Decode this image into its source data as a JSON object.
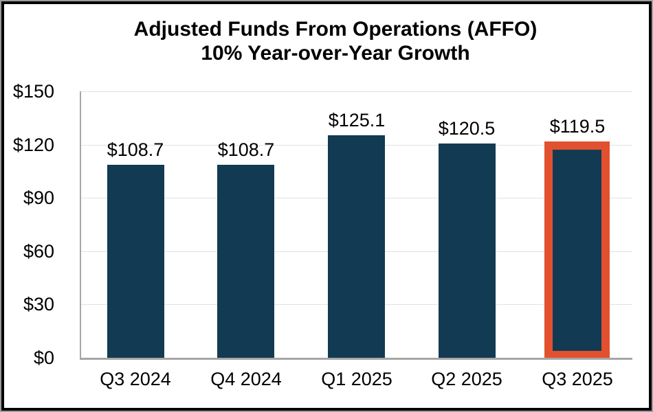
{
  "chart": {
    "title_line1": "Adjusted Funds From Operations (AFFO)",
    "title_line2": "10% Year-over-Year Growth"
  },
  "chart_data": {
    "type": "bar",
    "title": "Adjusted Funds From Operations (AFFO)",
    "subtitle": "10% Year-over-Year Growth",
    "categories": [
      "Q3 2024",
      "Q4 2024",
      "Q1 2025",
      "Q2 2025",
      "Q3 2025"
    ],
    "values": [
      108.7,
      108.7,
      125.1,
      120.5,
      119.5
    ],
    "data_labels": [
      "$108.7",
      "$108.7",
      "$125.1",
      "$120.5",
      "$119.5"
    ],
    "xlabel": "",
    "ylabel": "",
    "ylim": [
      0,
      150
    ],
    "y_ticks": [
      0,
      30,
      60,
      90,
      120,
      150
    ],
    "y_tick_labels": [
      "$0",
      "$30",
      "$60",
      "$90",
      "$120",
      "$150"
    ],
    "grid": true,
    "legend": false,
    "highlighted_index": 4,
    "highlight_style": "thick-outline",
    "colors": {
      "bar": "#123A52",
      "highlight_outline": "#E2512F",
      "gridline": "#E2E2E2",
      "axis": "#A6A6A6",
      "title_text": "#000000",
      "label_text": "#000000",
      "frame_border": "#000000",
      "background": "#FFFFFF"
    }
  }
}
